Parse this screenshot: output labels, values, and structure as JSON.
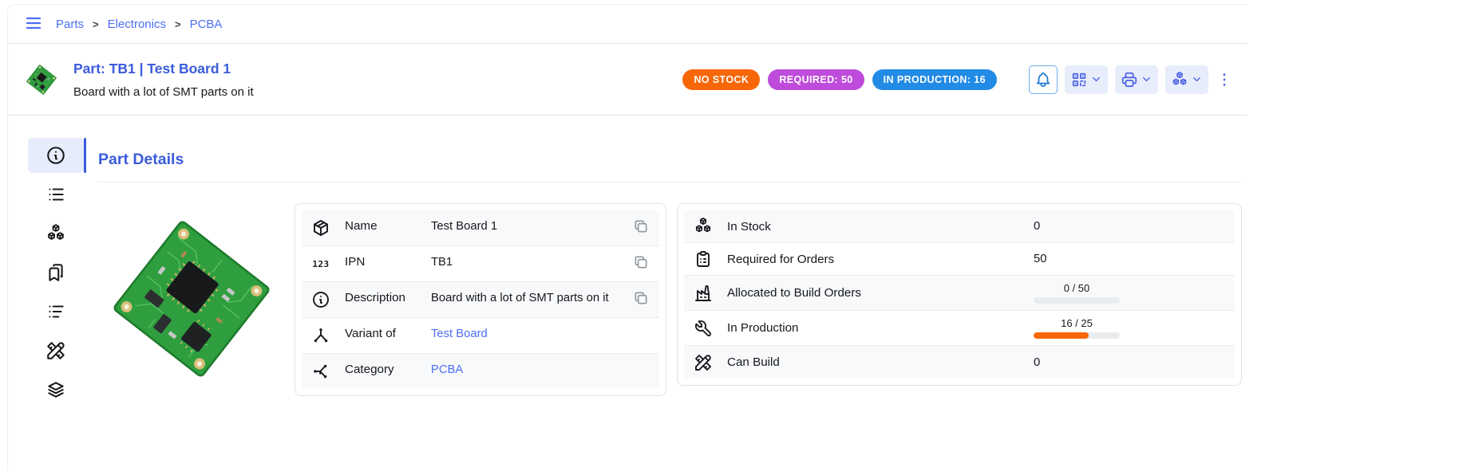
{
  "colors": {
    "accent": "#4c6ef5",
    "heading": "#3b5bdb",
    "no_stock_badge": "#f76707",
    "required_badge": "#be4bdb",
    "in_production_badge": "#228be6",
    "progress_fill": "#f76707"
  },
  "breadcrumb": {
    "separator": ">",
    "items": [
      {
        "label": "Parts"
      },
      {
        "label": "Electronics"
      },
      {
        "label": "PCBA"
      }
    ]
  },
  "header": {
    "title": "Part: TB1 | Test Board 1",
    "subtitle": "Board with a lot of SMT parts on it",
    "badges": [
      {
        "name": "no-stock-badge",
        "label": "NO STOCK",
        "color": "#f76707"
      },
      {
        "name": "required-badge",
        "label": "REQUIRED: 50",
        "color": "#be4bdb"
      },
      {
        "name": "in-production-badge",
        "label": "IN PRODUCTION: 16",
        "color": "#228be6"
      }
    ],
    "actions": [
      {
        "name": "notification-bell-button",
        "icon": "bell-icon",
        "dropdown": false
      },
      {
        "name": "barcode-actions-button",
        "icon": "qrcode-icon",
        "dropdown": true
      },
      {
        "name": "print-actions-button",
        "icon": "printer-icon",
        "dropdown": true
      },
      {
        "name": "stock-actions-button",
        "icon": "packages-icon",
        "dropdown": true
      },
      {
        "name": "more-options-button",
        "icon": "dots-vertical-icon",
        "dropdown": false
      }
    ]
  },
  "sidebar": {
    "items": [
      {
        "name": "details",
        "icon": "info-circle-icon",
        "selected": true
      },
      {
        "name": "parameters",
        "icon": "list-icon",
        "selected": false
      },
      {
        "name": "stock",
        "icon": "packages-icon",
        "selected": false
      },
      {
        "name": "variants",
        "icon": "bookmarks-icon",
        "selected": false
      },
      {
        "name": "allocations",
        "icon": "list-details-icon",
        "selected": false
      },
      {
        "name": "bom",
        "icon": "tools-icon",
        "selected": false
      },
      {
        "name": "used-in",
        "icon": "stack-icon",
        "selected": false
      }
    ]
  },
  "main": {
    "section_title": "Part Details",
    "details_table": {
      "rows": [
        {
          "icon": "box-icon",
          "label": "Name",
          "value": "Test Board 1",
          "copyable": true,
          "link": false
        },
        {
          "icon": "numbers-123-icon",
          "label": "IPN",
          "value": "TB1",
          "copyable": true,
          "link": false
        },
        {
          "icon": "info-circle-icon",
          "label": "Description",
          "value": "Board with a lot of SMT parts on it",
          "copyable": true,
          "link": false
        },
        {
          "icon": "network-icon",
          "label": "Variant of",
          "value": "Test Board",
          "copyable": false,
          "link": true
        },
        {
          "icon": "sitemap-icon",
          "label": "Category",
          "value": "PCBA",
          "copyable": false,
          "link": true
        }
      ]
    },
    "stock_table": {
      "rows": [
        {
          "icon": "packages-icon",
          "label": "In Stock",
          "value": "0"
        },
        {
          "icon": "clipboard-list-icon",
          "label": "Required for Orders",
          "value": "50"
        },
        {
          "icon": "factory-icon",
          "label": "Allocated to Build Orders",
          "progress": {
            "label": "0 / 50",
            "value": 0,
            "max": 50,
            "color": "#f76707"
          }
        },
        {
          "icon": "tool-icon",
          "label": "In Production",
          "progress": {
            "label": "16 / 25",
            "value": 16,
            "max": 25,
            "color": "#f76707"
          }
        },
        {
          "icon": "tools-icon",
          "label": "Can Build",
          "value": "0"
        }
      ]
    }
  }
}
